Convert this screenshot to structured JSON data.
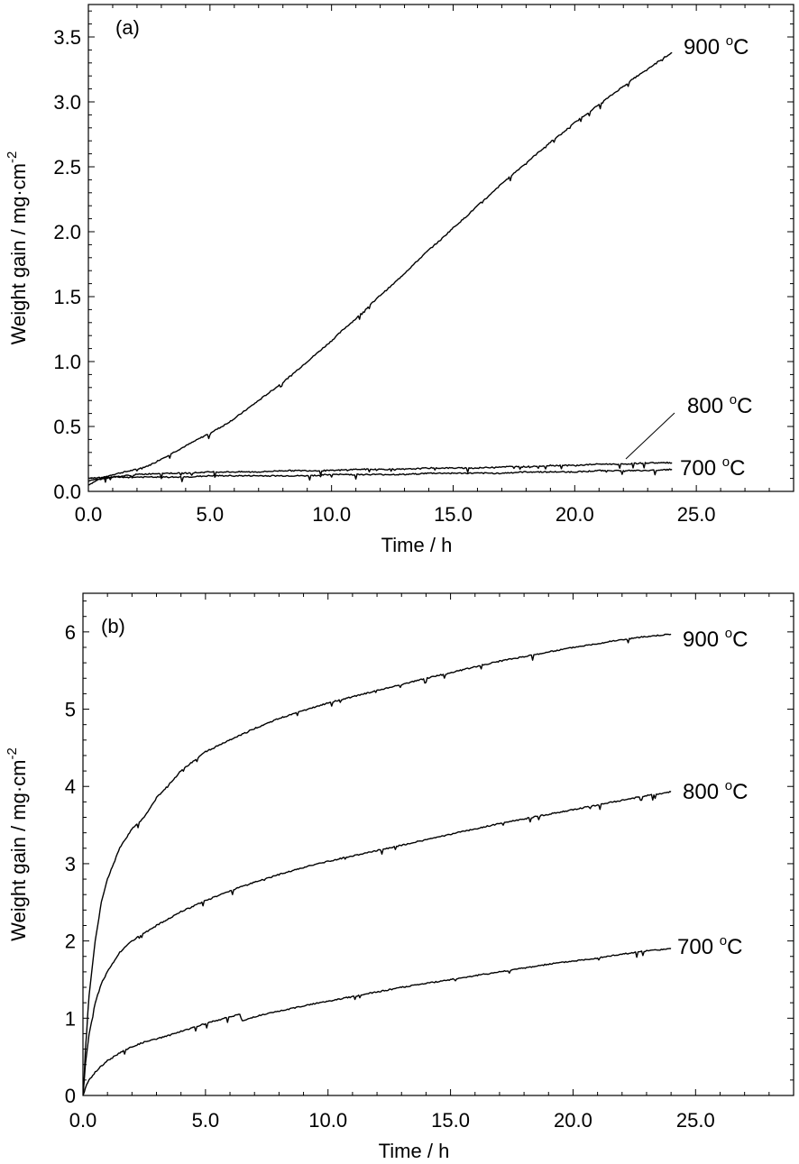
{
  "chart_data": [
    {
      "type": "line",
      "panel_label": "(a)",
      "xlabel": "Time / h",
      "ylabel": {
        "text": "Weight gain / mg·cm",
        "sup": "-2"
      },
      "xlim": [
        0,
        29
      ],
      "ylim": [
        0,
        3.75
      ],
      "xticks": [
        "0.0",
        "5.0",
        "10.0",
        "15.0",
        "20.0",
        "25.0"
      ],
      "xtick_values": [
        0,
        5,
        10,
        15,
        20,
        25
      ],
      "yticks": [
        "0.0",
        "0.5",
        "1.0",
        "1.5",
        "2.0",
        "2.5",
        "3.0",
        "3.5"
      ],
      "ytick_values": [
        0,
        0.5,
        1.0,
        1.5,
        2.0,
        2.5,
        3.0,
        3.5
      ],
      "grid": false,
      "legend": "none",
      "series": [
        {
          "name": "900 °C",
          "label": {
            "main": "900 ",
            "sup": "o",
            "unit": "C"
          },
          "x": [
            0,
            0.5,
            1,
            1.5,
            2,
            2.5,
            3,
            3.5,
            4,
            4.5,
            5,
            5.5,
            6,
            6.5,
            7,
            7.5,
            8,
            8.5,
            9,
            9.5,
            10,
            10.5,
            11,
            11.5,
            12,
            12.5,
            13,
            13.5,
            14,
            14.5,
            15,
            15.5,
            16,
            16.5,
            17,
            17.5,
            18,
            18.5,
            19,
            19.5,
            20,
            20.5,
            21,
            21.5,
            22,
            22.5,
            23,
            23.5,
            24
          ],
          "y": [
            0.05,
            0.1,
            0.13,
            0.15,
            0.17,
            0.2,
            0.25,
            0.3,
            0.35,
            0.4,
            0.45,
            0.5,
            0.56,
            0.63,
            0.7,
            0.77,
            0.84,
            0.92,
            1.0,
            1.08,
            1.16,
            1.25,
            1.33,
            1.42,
            1.51,
            1.59,
            1.68,
            1.77,
            1.86,
            1.94,
            2.03,
            2.11,
            2.2,
            2.28,
            2.37,
            2.45,
            2.53,
            2.61,
            2.69,
            2.76,
            2.84,
            2.91,
            2.98,
            3.05,
            3.12,
            3.19,
            3.25,
            3.32,
            3.38
          ]
        },
        {
          "name": "800 °C",
          "label": {
            "main": "800 ",
            "sup": "o",
            "unit": "C"
          },
          "x": [
            0,
            1,
            2,
            3,
            4,
            5,
            6,
            7,
            8,
            9,
            10,
            11,
            12,
            13,
            14,
            15,
            16,
            17,
            18,
            19,
            20,
            21,
            22,
            23,
            24
          ],
          "y": [
            0.08,
            0.11,
            0.13,
            0.14,
            0.14,
            0.15,
            0.15,
            0.15,
            0.16,
            0.16,
            0.16,
            0.17,
            0.17,
            0.17,
            0.18,
            0.18,
            0.18,
            0.19,
            0.19,
            0.2,
            0.2,
            0.21,
            0.21,
            0.22,
            0.22
          ]
        },
        {
          "name": "700 °C",
          "label": {
            "main": "700 ",
            "sup": "o",
            "unit": "C"
          },
          "x": [
            0,
            1,
            2,
            3,
            4,
            5,
            6,
            7,
            8,
            9,
            10,
            11,
            12,
            13,
            14,
            15,
            16,
            17,
            18,
            19,
            20,
            21,
            22,
            23,
            24
          ],
          "y": [
            0.1,
            0.11,
            0.11,
            0.11,
            0.11,
            0.12,
            0.12,
            0.12,
            0.12,
            0.12,
            0.13,
            0.13,
            0.13,
            0.13,
            0.14,
            0.14,
            0.14,
            0.14,
            0.15,
            0.15,
            0.15,
            0.16,
            0.16,
            0.16,
            0.17
          ]
        }
      ]
    },
    {
      "type": "line",
      "panel_label": "(b)",
      "xlabel": "Time / h",
      "ylabel": {
        "text": "Weight gain / mg·cm",
        "sup": "-2"
      },
      "xlim": [
        0,
        29
      ],
      "ylim": [
        0,
        6.5
      ],
      "xticks": [
        "0.0",
        "5.0",
        "10.0",
        "15.0",
        "20.0",
        "25.0"
      ],
      "xtick_values": [
        0,
        5,
        10,
        15,
        20,
        25
      ],
      "yticks": [
        "0",
        "1",
        "2",
        "3",
        "4",
        "5",
        "6"
      ],
      "ytick_values": [
        0,
        1,
        2,
        3,
        4,
        5,
        6
      ],
      "grid": false,
      "legend": "none",
      "series": [
        {
          "name": "900 °C",
          "label": {
            "main": "900 ",
            "sup": "o",
            "unit": "C"
          },
          "x": [
            0,
            0.1,
            0.25,
            0.5,
            0.75,
            1,
            1.5,
            2,
            2.5,
            3,
            4,
            5,
            6,
            7,
            8,
            9,
            10,
            11,
            12,
            13,
            14,
            15,
            16,
            17,
            18,
            19,
            20,
            21,
            22,
            23,
            24
          ],
          "y": [
            0,
            0.6,
            1.3,
            2.0,
            2.5,
            2.8,
            3.2,
            3.45,
            3.6,
            3.85,
            4.2,
            4.45,
            4.6,
            4.75,
            4.88,
            4.98,
            5.08,
            5.16,
            5.24,
            5.32,
            5.4,
            5.47,
            5.55,
            5.62,
            5.68,
            5.74,
            5.8,
            5.85,
            5.9,
            5.94,
            5.97
          ]
        },
        {
          "name": "800 °C",
          "label": {
            "main": "800 ",
            "sup": "o",
            "unit": "C"
          },
          "x": [
            0,
            0.1,
            0.25,
            0.5,
            0.75,
            1,
            1.5,
            2,
            2.5,
            3,
            4,
            5,
            6,
            7,
            8,
            9,
            10,
            11,
            12,
            13,
            14,
            15,
            16,
            17,
            18,
            19,
            20,
            21,
            22,
            23,
            24
          ],
          "y": [
            0,
            0.4,
            0.8,
            1.2,
            1.45,
            1.6,
            1.85,
            2.0,
            2.1,
            2.2,
            2.38,
            2.52,
            2.65,
            2.76,
            2.86,
            2.95,
            3.03,
            3.1,
            3.17,
            3.24,
            3.31,
            3.38,
            3.45,
            3.52,
            3.58,
            3.64,
            3.7,
            3.76,
            3.82,
            3.88,
            3.93
          ]
        },
        {
          "name": "700 °C",
          "label": {
            "main": "700 ",
            "sup": "o",
            "unit": "C"
          },
          "x": [
            0,
            0.1,
            0.25,
            0.5,
            0.75,
            1,
            1.5,
            2,
            2.5,
            3,
            4,
            5,
            6,
            6.4,
            6.5,
            7,
            8,
            9,
            10,
            11,
            12,
            13,
            14,
            15,
            16,
            17,
            18,
            19,
            20,
            21,
            22,
            23,
            24
          ],
          "y": [
            0,
            0.1,
            0.2,
            0.3,
            0.38,
            0.45,
            0.55,
            0.63,
            0.69,
            0.73,
            0.83,
            0.93,
            1.02,
            1.05,
            0.96,
            1.02,
            1.09,
            1.16,
            1.22,
            1.28,
            1.34,
            1.4,
            1.45,
            1.5,
            1.55,
            1.6,
            1.65,
            1.7,
            1.74,
            1.78,
            1.83,
            1.87,
            1.9
          ]
        }
      ]
    }
  ]
}
